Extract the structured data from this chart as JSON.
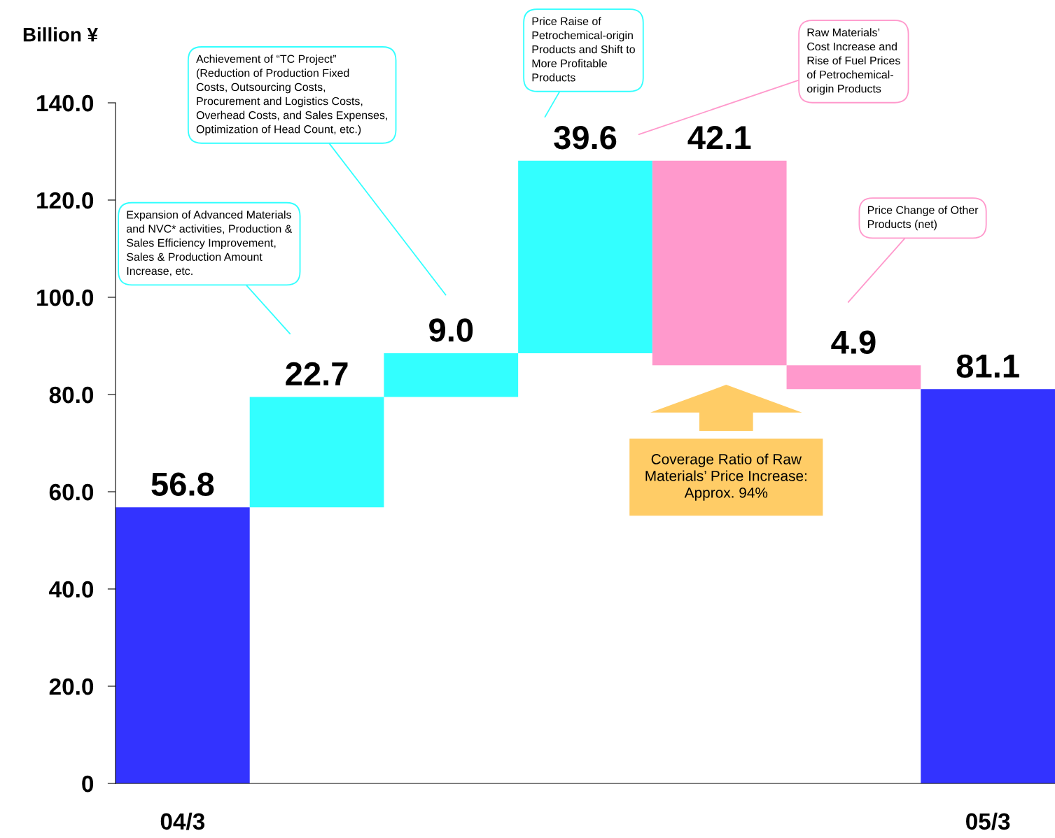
{
  "chart_data": {
    "type": "bar",
    "ylabel": "Billion ¥",
    "categories": [
      "04/3",
      null,
      null,
      null,
      null,
      null,
      "05/3"
    ],
    "values": [
      56.8,
      22.7,
      9.0,
      39.6,
      -42.1,
      -4.9,
      81.1
    ],
    "base": [
      0,
      56.8,
      79.5,
      88.5,
      128.1,
      86.0,
      0
    ],
    "colors": [
      "#3333ff",
      "#33ffff",
      "#33ffff",
      "#33ffff",
      "#ff99cc",
      "#ff99cc",
      "#3333ff"
    ],
    "value_labels": [
      "56.8",
      "22.7",
      "9.0",
      "39.6",
      "42.1",
      "4.9",
      "81.1"
    ],
    "ylim": [
      0,
      140
    ],
    "yticks": [
      0,
      {
        "value": 20,
        "label": "20.0"
      },
      {
        "value": 40,
        "label": "40.0"
      },
      {
        "value": 60,
        "label": "60.0"
      },
      {
        "value": 80,
        "label": "80.0"
      },
      {
        "value": 100,
        "label": "100.0"
      },
      {
        "value": 120,
        "label": "120.0"
      },
      {
        "value": 140,
        "label": "140.0"
      }
    ],
    "grid": false,
    "legend": false,
    "annotations": [
      "Expansion of Advanced Materials\nand NVC* activities, Production &\nSales Efficiency Improvement,\nSales & Production Amount\nIncrease, etc.",
      "Achievement of “TC Project”\n(Reduction of Production Fixed\nCosts, Outsourcing Costs,\nProcurement and Logistics Costs,\nOverhead Costs, and Sales Expenses,\nOptimization of Head Count, etc.)",
      "Price Raise of\nPetrochemical-origin\nProducts and Shift to\nMore Profitable\nProducts",
      "Raw Materials’\nCost Increase and\nRise of Fuel Prices\nof Petrochemical-\norigin Products",
      "Price Change of Other\nProducts (net)",
      "Coverage Ratio of Raw\nMaterials’ Price Increase:\nApprox. 94%"
    ]
  }
}
